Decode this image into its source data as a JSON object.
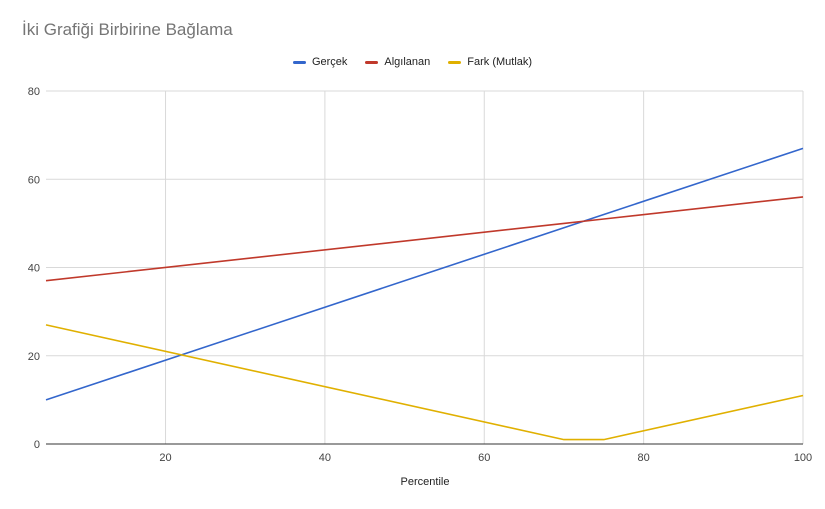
{
  "chart_data": {
    "type": "line",
    "title": "İki Grafiği Birbirine Bağlama",
    "xlabel": "Percentile",
    "ylabel": "",
    "xlim": [
      5,
      100
    ],
    "ylim": [
      0,
      80
    ],
    "x_ticks": [
      20,
      40,
      60,
      80,
      100
    ],
    "y_ticks": [
      0,
      20,
      40,
      60,
      80
    ],
    "grid": true,
    "legend_position": "top",
    "series": [
      {
        "name": "Gerçek",
        "color": "#3366cc",
        "points": [
          [
            5,
            10
          ],
          [
            70,
            49
          ],
          [
            75,
            52
          ],
          [
            100,
            67
          ]
        ]
      },
      {
        "name": "Algılanan",
        "color": "#c0392b",
        "points": [
          [
            5,
            37
          ],
          [
            70,
            50
          ],
          [
            75,
            51
          ],
          [
            100,
            56
          ]
        ]
      },
      {
        "name": "Fark (Mutlak)",
        "color": "#e0b000",
        "points": [
          [
            5,
            27
          ],
          [
            70,
            1
          ],
          [
            75,
            1
          ],
          [
            100,
            11
          ]
        ]
      }
    ]
  }
}
